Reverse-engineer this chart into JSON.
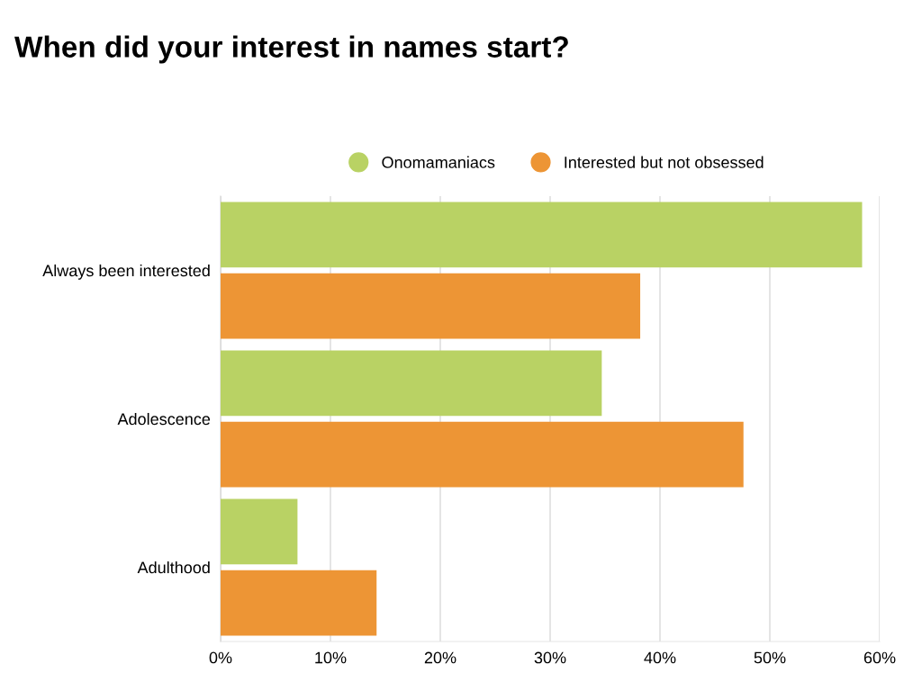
{
  "chart_data": {
    "type": "bar",
    "orientation": "horizontal",
    "title": "When did your interest in names start?",
    "categories": [
      "Always been interested",
      "Adolescence",
      "Adulthood"
    ],
    "series": [
      {
        "name": "Onomamaniacs",
        "color": "#b9d264",
        "values": [
          58.4,
          34.7,
          7.0
        ]
      },
      {
        "name": "Interested but not obsessed",
        "color": "#ed9535",
        "values": [
          38.2,
          47.6,
          14.2
        ]
      }
    ],
    "xlim": [
      0,
      60
    ],
    "xticks": [
      {
        "value": 0,
        "label": "0%"
      },
      {
        "value": 10,
        "label": "10%"
      },
      {
        "value": 20,
        "label": "20%"
      },
      {
        "value": 30,
        "label": "30%"
      },
      {
        "value": 40,
        "label": "40%"
      },
      {
        "value": 50,
        "label": "50%"
      },
      {
        "value": 60,
        "label": "60%"
      }
    ],
    "grid": "x",
    "legend": "top"
  }
}
